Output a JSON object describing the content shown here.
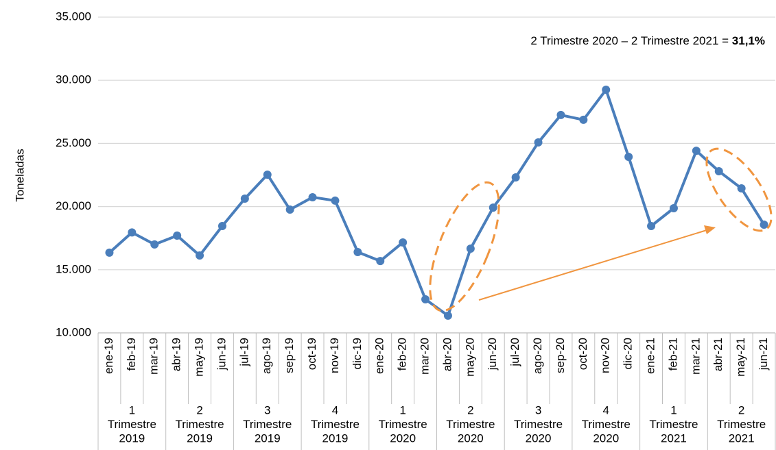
{
  "chart_data": {
    "type": "line",
    "y_label": "Toneladas",
    "annotation": "2 Trimestre 2020 – 2 Trimestre 2021 = ",
    "annotation_value": "31,1%",
    "categories": [
      "ene-19",
      "feb-19",
      "mar-19",
      "abr-19",
      "may-19",
      "jun-19",
      "jul-19",
      "ago-19",
      "sep-19",
      "oct-19",
      "nov-19",
      "dic-19",
      "ene-20",
      "feb-20",
      "mar-20",
      "abr-20",
      "may-20",
      "jun-20",
      "jul-20",
      "ago-20",
      "sep-20",
      "oct-20",
      "nov-20",
      "dic-20",
      "ene-21",
      "feb-21",
      "mar-21",
      "abr-21",
      "may-21",
      "jun-21"
    ],
    "quarter_groups": [
      [
        "1",
        "Trimestre",
        "2019"
      ],
      [
        "2",
        "Trimestre",
        "2019"
      ],
      [
        "3",
        "Trimestre",
        "2019"
      ],
      [
        "4",
        "Trimestre",
        "2019"
      ],
      [
        "1",
        "Trimestre",
        "2020"
      ],
      [
        "2",
        "Trimestre",
        "2020"
      ],
      [
        "3",
        "Trimestre",
        "2020"
      ],
      [
        "4",
        "Trimestre",
        "2020"
      ],
      [
        "1",
        "Trimestre",
        "2021"
      ],
      [
        "2",
        "Trimestre",
        "2021"
      ]
    ],
    "series": [
      {
        "name": "Toneladas",
        "color": "#4a7ebb",
        "values": [
          16350,
          17950,
          17000,
          17700,
          16130,
          18460,
          20630,
          22530,
          19760,
          20740,
          20470,
          16400,
          15690,
          17160,
          12660,
          11360,
          16670,
          19920,
          22310,
          25080,
          27250,
          26870,
          29250,
          23940,
          18460,
          19870,
          24420,
          22800,
          21440,
          18570
        ]
      }
    ],
    "ylim": [
      10000,
      35000
    ],
    "yticks": [
      {
        "value": 10000,
        "label": "10.000"
      },
      {
        "value": 15000,
        "label": "15.000"
      },
      {
        "value": 20000,
        "label": "20.000"
      },
      {
        "value": 25000,
        "label": "25.000"
      },
      {
        "value": 30000,
        "label": "30.000"
      },
      {
        "value": 35000,
        "label": "35.000"
      }
    ],
    "grid": true,
    "annotation_color": "#f0953f"
  }
}
